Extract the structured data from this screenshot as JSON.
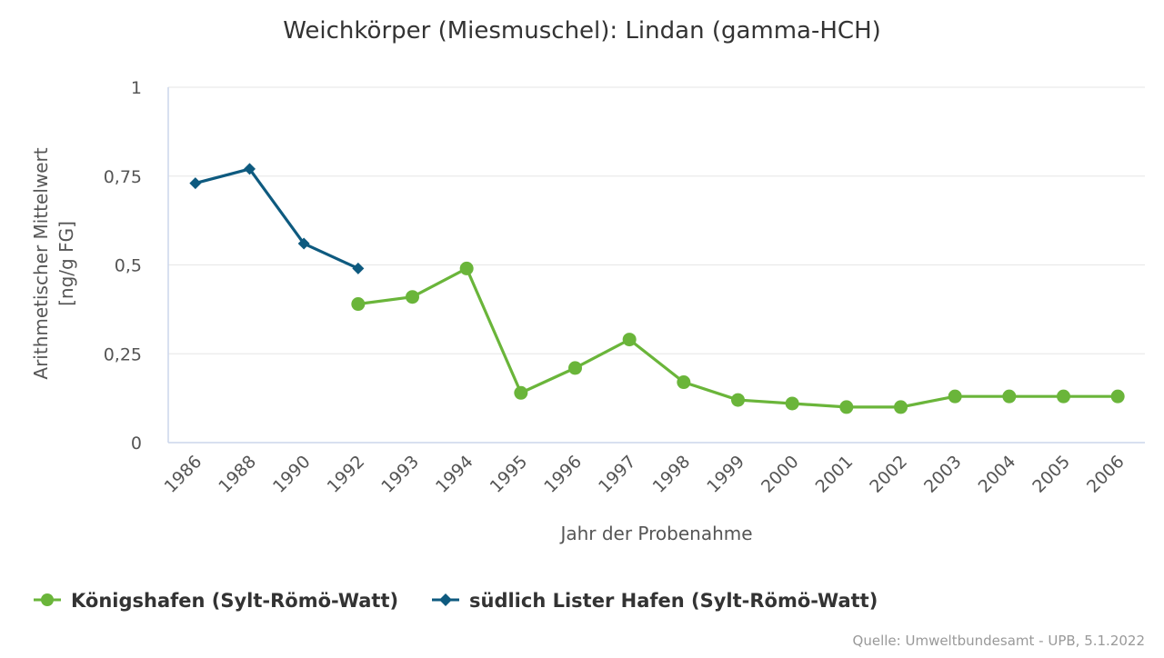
{
  "chart_data": {
    "type": "line",
    "title": "Weichkörper (Miesmuschel): Lindan (gamma-HCH)",
    "xlabel": "Jahr der Probenahme",
    "ylabel_lines": [
      "Arithmetischer Mittelwert",
      "[ng/g FG]"
    ],
    "categories": [
      "1986",
      "1988",
      "1990",
      "1992",
      "1993",
      "1994",
      "1995",
      "1996",
      "1997",
      "1998",
      "1999",
      "2000",
      "2001",
      "2002",
      "2003",
      "2004",
      "2005",
      "2006"
    ],
    "ylim": [
      0,
      1
    ],
    "yticks": [
      0,
      0.25,
      0.5,
      0.75,
      1
    ],
    "ytick_labels": [
      "0",
      "0,25",
      "0,5",
      "0,75",
      "1"
    ],
    "grid": true,
    "legend_position": "bottom-left",
    "series": [
      {
        "name": "Königshafen (Sylt-Römö-Watt)",
        "color": "#6ab53a",
        "marker": "circle",
        "values": [
          null,
          null,
          null,
          0.39,
          0.41,
          0.49,
          0.14,
          0.21,
          0.29,
          0.17,
          0.12,
          0.11,
          0.1,
          0.1,
          0.13,
          0.13,
          0.13,
          0.13
        ]
      },
      {
        "name": "südlich Lister Hafen (Sylt-Römö-Watt)",
        "color": "#0e5a7f",
        "marker": "diamond",
        "values": [
          0.73,
          0.77,
          0.56,
          0.49,
          null,
          null,
          null,
          null,
          null,
          null,
          null,
          null,
          null,
          null,
          null,
          null,
          null,
          null
        ]
      }
    ],
    "credit": "Quelle: Umweltbundesamt - UPB, 5.1.2022"
  },
  "colors": {
    "axis": "#ccd6eb",
    "grid": "#e6e6e6",
    "text": "#333333",
    "muted": "#999999"
  }
}
